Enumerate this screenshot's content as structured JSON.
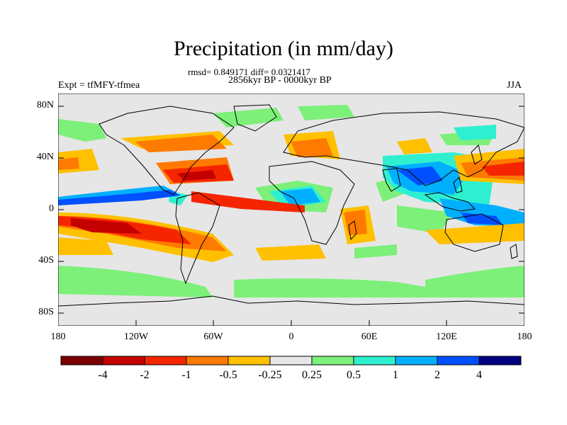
{
  "title": "Precipitation (in mm/day)",
  "stats": "rmsd= 0.849171 diff= 0.0321417",
  "period": "2856kyr BP - 0000kyr BP",
  "experiment": "Expt = tfMFY-tfmea",
  "season": "JJA",
  "lat_ticks": [
    "80N",
    "40N",
    "0",
    "40S",
    "80S"
  ],
  "lon_ticks": [
    "180",
    "120W",
    "60W",
    "0",
    "60E",
    "120E",
    "180"
  ],
  "colorbar": {
    "labels": [
      "-4",
      "-2",
      "-1",
      "-0.5",
      "-0.25",
      "0.25",
      "0.5",
      "1",
      "2",
      "4"
    ],
    "colors": [
      "#7a0000",
      "#c40000",
      "#f52500",
      "#ff7a00",
      "#ffc000",
      "#e6e6e6",
      "#7df07a",
      "#2ef0d0",
      "#00b0ff",
      "#0050ff",
      "#000080"
    ]
  },
  "colors": {
    "ocean_land_background": "#e6e6e6",
    "coastline": "#000000"
  }
}
